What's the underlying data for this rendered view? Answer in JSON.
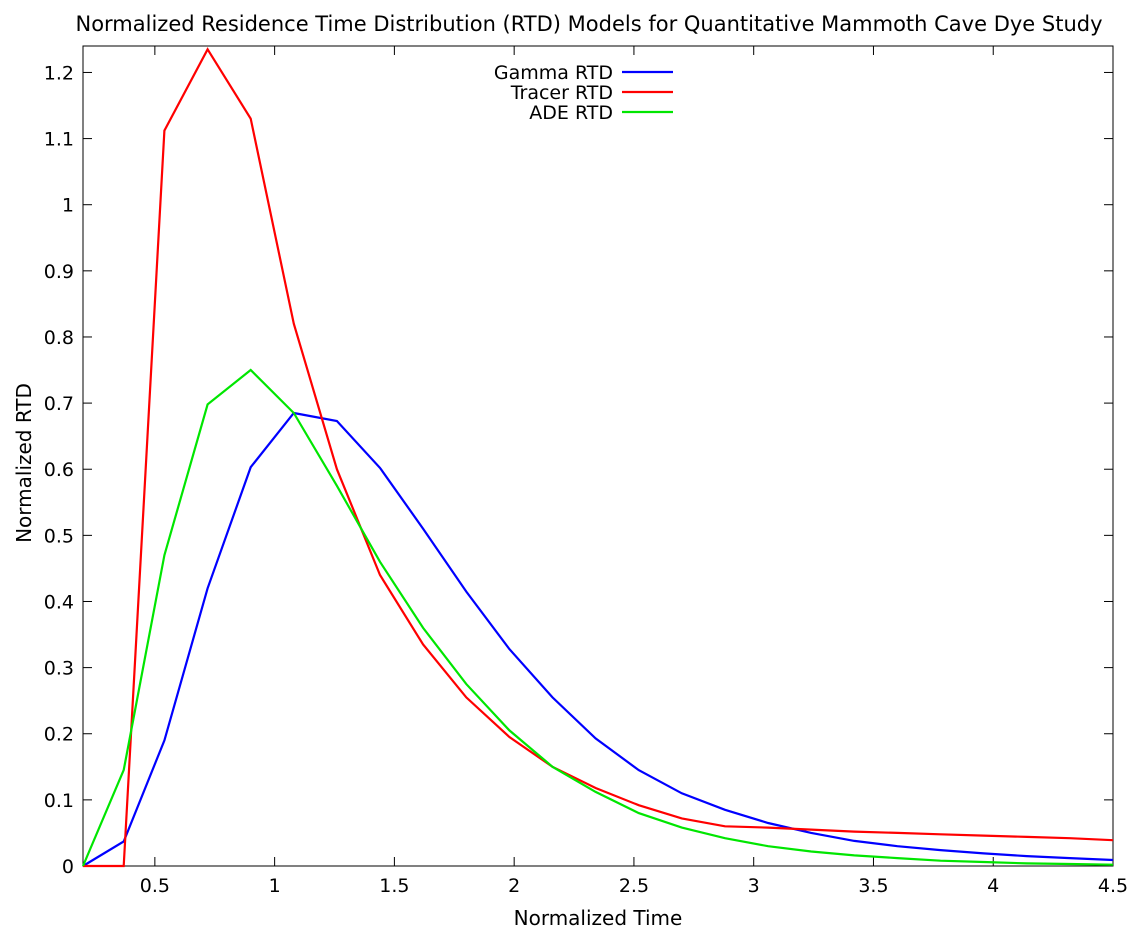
{
  "chart_data": {
    "type": "line",
    "title": "Normalized Residence Time Distribution (RTD) Models for Quantitative Mammoth Cave Dye Study",
    "xlabel": "Normalized Time",
    "ylabel": "Normalized RTD",
    "xlim": [
      0.2,
      4.5
    ],
    "ylim": [
      0,
      1.24
    ],
    "xticks": [
      0.5,
      1,
      1.5,
      2,
      2.5,
      3,
      3.5,
      4,
      4.5
    ],
    "xtick_labels": [
      "0.5",
      "1",
      "1.5",
      "2",
      "2.5",
      "3",
      "3.5",
      "4",
      "4.5"
    ],
    "yticks": [
      0,
      0.1,
      0.2,
      0.3,
      0.4,
      0.5,
      0.6,
      0.7,
      0.8,
      0.9,
      1,
      1.1,
      1.2
    ],
    "ytick_labels": [
      "0",
      "0.1",
      "0.2",
      "0.3",
      "0.4",
      "0.5",
      "0.6",
      "0.7",
      "0.8",
      "0.9",
      "1",
      "1.1",
      "1.2"
    ],
    "grid": false,
    "legend_position": "top-center",
    "series": [
      {
        "name": "Gamma RTD",
        "color": "#0000ff",
        "x": [
          0.2,
          0.37,
          0.54,
          0.72,
          0.9,
          1.08,
          1.26,
          1.44,
          1.62,
          1.8,
          1.98,
          2.16,
          2.34,
          2.52,
          2.7,
          2.88,
          3.06,
          3.24,
          3.42,
          3.6,
          3.78,
          3.96,
          4.14,
          4.32,
          4.5
        ],
        "y": [
          0.0,
          0.037,
          0.19,
          0.42,
          0.603,
          0.685,
          0.673,
          0.602,
          0.51,
          0.415,
          0.328,
          0.255,
          0.193,
          0.145,
          0.11,
          0.085,
          0.065,
          0.05,
          0.038,
          0.03,
          0.024,
          0.019,
          0.015,
          0.012,
          0.009
        ]
      },
      {
        "name": "Tracer RTD",
        "color": "#ff0000",
        "x": [
          0.2,
          0.37,
          0.54,
          0.72,
          0.9,
          1.08,
          1.26,
          1.44,
          1.62,
          1.8,
          1.98,
          2.16,
          2.34,
          2.52,
          2.7,
          2.88,
          3.06,
          3.24,
          3.42,
          3.6,
          3.78,
          3.96,
          4.14,
          4.32,
          4.5
        ],
        "y": [
          0.0,
          0.0,
          1.112,
          1.235,
          1.13,
          0.82,
          0.6,
          0.44,
          0.335,
          0.255,
          0.195,
          0.15,
          0.118,
          0.092,
          0.072,
          0.06,
          0.058,
          0.055,
          0.052,
          0.05,
          0.048,
          0.046,
          0.044,
          0.042,
          0.039
        ]
      },
      {
        "name": "ADE RTD",
        "color": "#00e600",
        "x": [
          0.2,
          0.37,
          0.54,
          0.72,
          0.9,
          1.08,
          1.26,
          1.44,
          1.62,
          1.8,
          1.98,
          2.16,
          2.34,
          2.52,
          2.7,
          2.88,
          3.06,
          3.24,
          3.42,
          3.6,
          3.78,
          3.96,
          4.14,
          4.32,
          4.5
        ],
        "y": [
          0.0,
          0.145,
          0.47,
          0.698,
          0.75,
          0.685,
          0.575,
          0.46,
          0.36,
          0.275,
          0.205,
          0.15,
          0.112,
          0.08,
          0.058,
          0.042,
          0.03,
          0.022,
          0.016,
          0.012,
          0.008,
          0.006,
          0.004,
          0.003,
          0.002
        ]
      }
    ]
  }
}
